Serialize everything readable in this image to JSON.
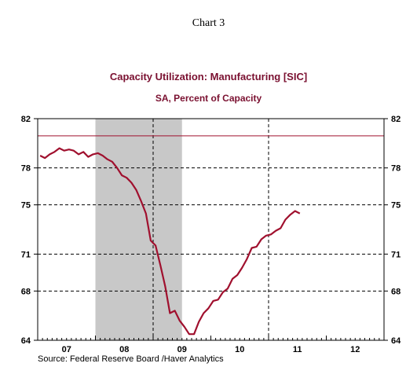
{
  "chart_number": "Chart 3",
  "source": "Source:  Federal Reserve Board /Haver Analytics",
  "chart_data": {
    "type": "line",
    "title": "Capacity Utilization: Manufacturing [SIC]",
    "subtitle": "SA, Percent of Capacity",
    "xlabel": "",
    "ylabel": "",
    "x_tick_labels": [
      "07",
      "08",
      "09",
      "10",
      "11",
      "12"
    ],
    "xlim": [
      "2007-01",
      "2012-12"
    ],
    "y_ticks": [
      64,
      68,
      71,
      75,
      78,
      82
    ],
    "ylim": [
      64,
      82
    ],
    "grid": true,
    "legend": "none",
    "colors": {
      "series": "#a0102e",
      "reference_line": "#a0102e",
      "recession": "#c8c8c8"
    },
    "recession_shading": {
      "start": "2008-01",
      "end": "2009-06"
    },
    "vertical_markers": [
      "2008-12",
      "2010-12"
    ],
    "reference_line": 80.6,
    "series": [
      {
        "x": [
          "2007-01",
          "2007-02",
          "2007-03",
          "2007-04",
          "2007-05",
          "2007-06",
          "2007-07",
          "2007-08",
          "2007-09",
          "2007-10",
          "2007-11",
          "2007-12",
          "2008-01",
          "2008-02",
          "2008-03",
          "2008-04",
          "2008-05",
          "2008-06",
          "2008-07",
          "2008-08",
          "2008-09",
          "2008-10",
          "2008-11",
          "2008-12",
          "2009-01",
          "2009-02",
          "2009-03",
          "2009-04",
          "2009-05",
          "2009-06",
          "2009-07",
          "2009-08",
          "2009-09",
          "2009-10",
          "2009-11",
          "2009-12",
          "2010-01",
          "2010-02",
          "2010-03",
          "2010-04",
          "2010-05",
          "2010-06",
          "2010-07",
          "2010-08",
          "2010-09",
          "2010-10",
          "2010-11",
          "2010-12",
          "2011-01",
          "2011-02",
          "2011-03",
          "2011-04"
        ],
        "values": [
          79.0,
          78.8,
          79.1,
          79.3,
          79.6,
          79.4,
          79.5,
          79.4,
          79.1,
          79.3,
          78.9,
          79.1,
          79.2,
          79.0,
          78.7,
          78.5,
          78.0,
          77.4,
          77.2,
          76.8,
          76.2,
          75.3,
          74.3,
          72.1,
          71.7,
          70.1,
          68.4,
          66.2,
          66.4,
          65.6,
          65.1,
          64.5,
          64.5,
          65.5,
          66.2,
          66.6,
          67.2,
          67.3,
          67.9,
          68.2,
          69.0,
          69.3,
          69.9,
          70.6,
          71.5,
          71.6,
          72.2,
          72.5,
          72.6,
          72.9,
          73.1,
          73.8
        ]
      }
    ],
    "series_tail_note": "",
    "series_extra": {
      "x": [
        "2011-05",
        "2011-06",
        "2011-07"
      ],
      "values": [
        74.2,
        74.5,
        74.3
      ]
    }
  }
}
